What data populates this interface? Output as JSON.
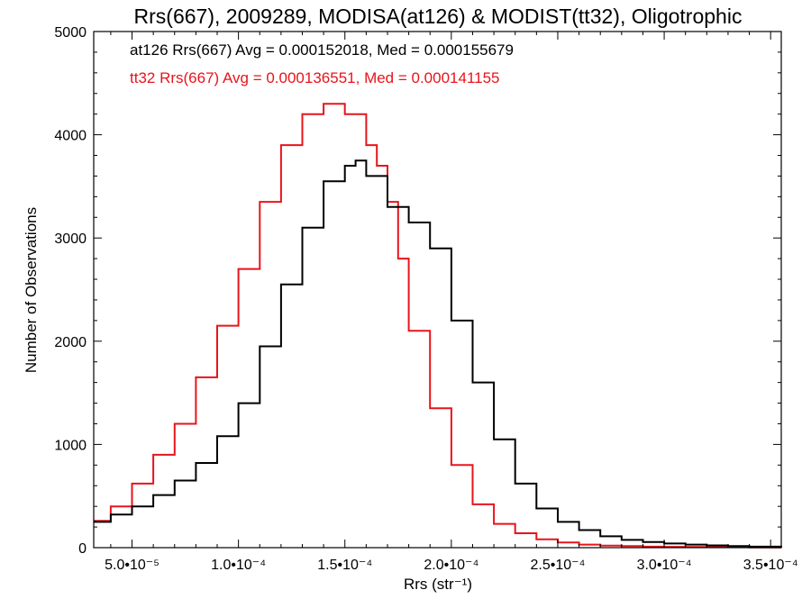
{
  "chart_data": {
    "type": "line",
    "style": "step-histogram",
    "title": "Rrs(667), 2009289, MODISA(at126) & MODIST(tt32), Oligotrophic",
    "xlabel": "Rrs (str⁻¹)",
    "ylabel": "Number of Observations",
    "xlim": [
      3.2e-05,
      0.000355
    ],
    "ylim": [
      0,
      5000
    ],
    "x_tick_values": [
      5e-05,
      0.0001,
      0.00015,
      0.0002,
      0.00025,
      0.0003,
      0.00035
    ],
    "x_tick_labels": [
      "5.0•10⁻⁵",
      "1.0•10⁻⁴",
      "1.5•10⁻⁴",
      "2.0•10⁻⁴",
      "2.5•10⁻⁴",
      "3.0•10⁻⁴",
      "3.5•10⁻⁴"
    ],
    "y_tick_values": [
      0,
      1000,
      2000,
      3000,
      4000,
      5000
    ],
    "y_tick_labels": [
      "0",
      "1000",
      "2000",
      "3000",
      "4000",
      "5000"
    ],
    "grid": false,
    "annotations": [
      {
        "text": "at126 Rrs(667) Avg = 0.000152018, Med = 0.000155679",
        "color": "#000000"
      },
      {
        "text": "tt32 Rrs(667) Avg = 0.000136551, Med = 0.000141155",
        "color": "#e8141b"
      }
    ],
    "series": [
      {
        "color": "#000000",
        "x": [
          3.2e-05,
          4e-05,
          5e-05,
          6e-05,
          7e-05,
          8e-05,
          9e-05,
          0.0001,
          0.00011,
          0.00012,
          0.00013,
          0.00014,
          0.00015,
          0.000155,
          0.00016,
          0.00017,
          0.00018,
          0.00019,
          0.0002,
          0.00021,
          0.00022,
          0.00023,
          0.00024,
          0.00025,
          0.00026,
          0.00027,
          0.00028,
          0.00029,
          0.0003,
          0.00031,
          0.00032,
          0.00033,
          0.00034,
          0.000355
        ],
        "y": [
          250,
          320,
          400,
          510,
          650,
          820,
          1080,
          1400,
          1950,
          2550,
          3100,
          3550,
          3700,
          3750,
          3600,
          3300,
          3150,
          2900,
          2200,
          1600,
          1050,
          620,
          380,
          250,
          170,
          110,
          75,
          55,
          40,
          30,
          22,
          15,
          10,
          8
        ]
      },
      {
        "color": "#e8141b",
        "x": [
          3.2e-05,
          4e-05,
          5e-05,
          6e-05,
          7e-05,
          8e-05,
          9e-05,
          0.0001,
          0.00011,
          0.00012,
          0.00013,
          0.00014,
          0.00015,
          0.00016,
          0.000165,
          0.00017,
          0.000175,
          0.00018,
          0.00019,
          0.0002,
          0.00021,
          0.00022,
          0.00023,
          0.00024,
          0.00025,
          0.00026,
          0.00027,
          0.00028,
          0.00029,
          0.0003,
          0.00031,
          0.00032,
          0.00034,
          0.000355
        ],
        "y": [
          260,
          400,
          620,
          900,
          1200,
          1650,
          2150,
          2700,
          3350,
          3900,
          4200,
          4300,
          4200,
          3900,
          3700,
          3350,
          2800,
          2100,
          1350,
          800,
          420,
          230,
          140,
          80,
          50,
          30,
          20,
          15,
          10,
          8,
          6,
          5,
          3,
          2
        ]
      }
    ]
  }
}
